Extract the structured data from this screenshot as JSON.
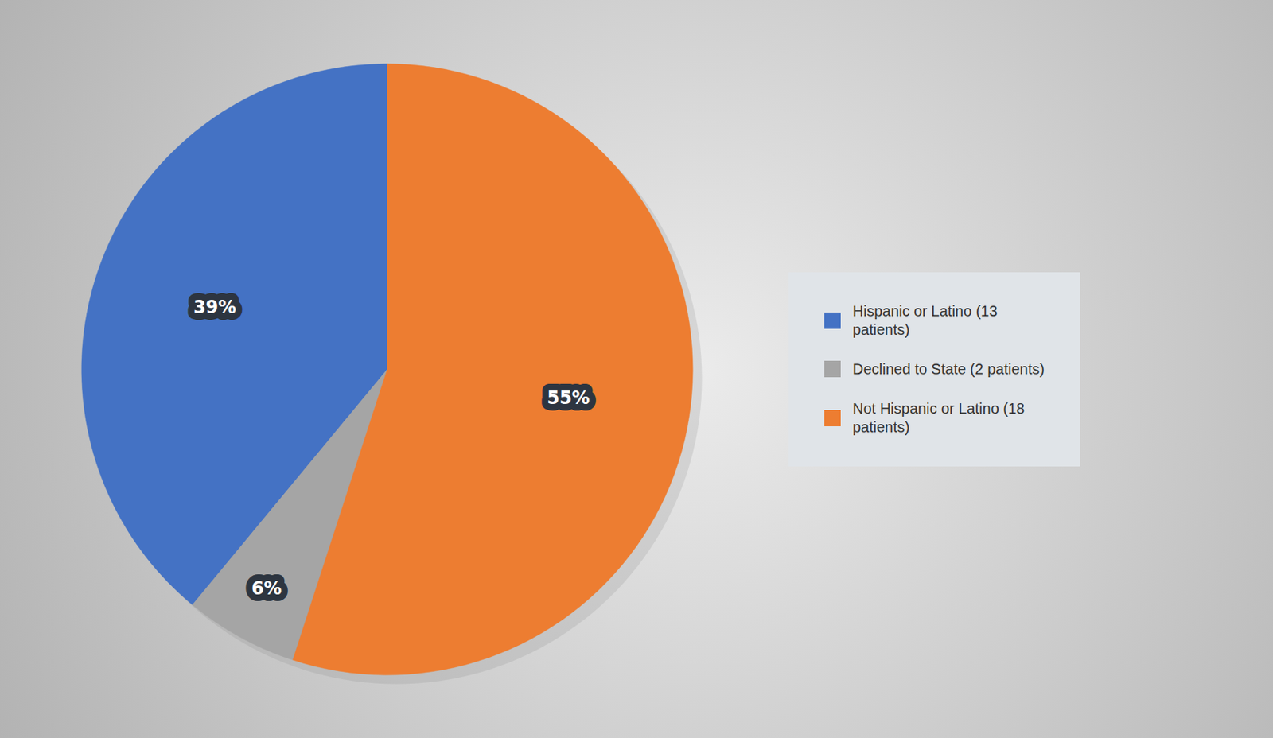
{
  "chart_data": {
    "type": "pie",
    "categories": [
      "Hispanic or Latino (13\npatients)",
      "Declined to State (2 patients)",
      "Not Hispanic or Latino (18\npatients)"
    ],
    "values": [
      39,
      6,
      55
    ],
    "value_labels": [
      "39%",
      "6%",
      "55%"
    ],
    "colors": [
      "#4472C4",
      "#A5A5A5",
      "#ED7D31"
    ],
    "data_labels": true,
    "legend": "right"
  }
}
